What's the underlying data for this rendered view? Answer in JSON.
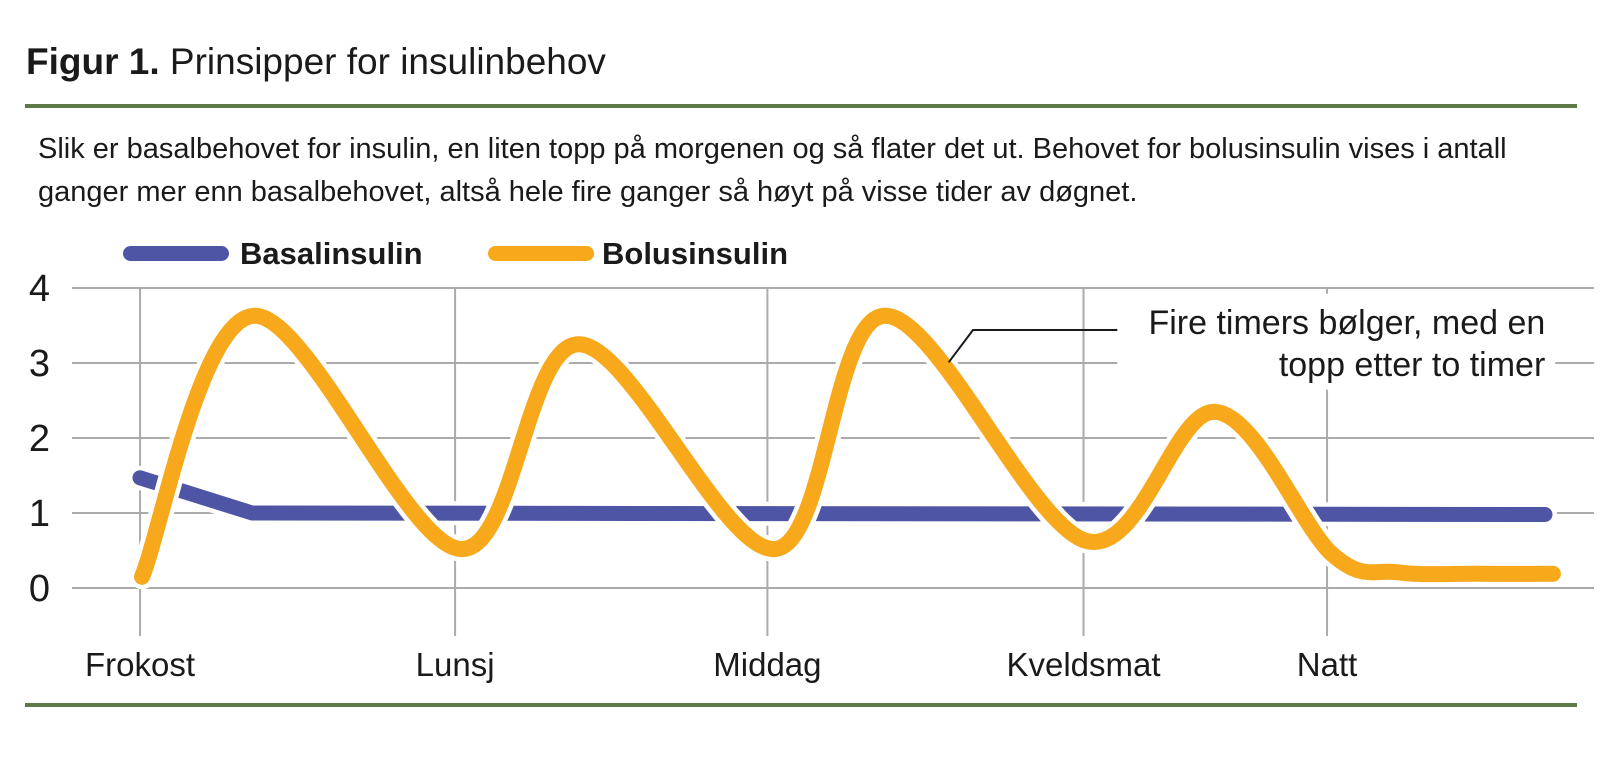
{
  "figure": {
    "label": "Figur 1.",
    "title": "Prinsipper for insulinbehov",
    "description_lines": [
      "Slik er basalbehovet for insulin, en liten topp på morgenen og så flater det ut. Behovet for bolusinsulin vises i antall",
      "ganger mer enn basalbehovet, altså hele fire ganger så høyt på visse tider av døgnet."
    ]
  },
  "legend": {
    "items": [
      {
        "label": "Basalinsulin",
        "color": "#4d55a4"
      },
      {
        "label": "Bolusinsulin",
        "color": "#f7a81b"
      }
    ]
  },
  "chart_data": {
    "type": "line",
    "title": "Prinsipper for insulinbehov",
    "xlabel": "",
    "ylabel": "",
    "x_axis": {
      "labels": [
        "Frokost",
        "Lunsj",
        "Middag",
        "Kveldsmat",
        "Natt"
      ],
      "label_positions": [
        0.0447,
        0.2517,
        0.4569,
        0.6646,
        0.8246
      ]
    },
    "y_axis": {
      "ticks": [
        0,
        1,
        2,
        3,
        4
      ],
      "range": [
        0,
        4
      ]
    },
    "grid": true,
    "legend_position": "top-left",
    "series": [
      {
        "name": "Basalinsulin",
        "color": "#4d55a4",
        "style": "straight",
        "width": 15,
        "points": [
          [
            0.0447,
            1.47
          ],
          [
            0.1183,
            1.0
          ],
          [
            0.9678,
            0.98
          ]
        ]
      },
      {
        "name": "Bolusinsulin",
        "color": "#f7a81b",
        "style": "smooth",
        "width": 16,
        "points": [
          [
            0.046,
            0.15
          ],
          [
            0.119,
            3.63
          ],
          [
            0.255,
            0.52
          ],
          [
            0.333,
            3.25
          ],
          [
            0.462,
            0.52
          ],
          [
            0.534,
            3.63
          ],
          [
            0.666,
            0.63
          ],
          [
            0.751,
            2.35
          ],
          [
            0.828,
            0.45
          ],
          [
            0.871,
            0.21
          ],
          [
            0.922,
            0.19
          ],
          [
            0.973,
            0.19
          ]
        ]
      }
    ],
    "annotation": {
      "lines": [
        "Fire timers bølger, med en",
        "topp etter to timer"
      ],
      "align": "right",
      "x": 0.968,
      "line_values": [
        3.55,
        2.99
      ],
      "callout_points": [
        [
          0.576,
          3.01
        ],
        [
          0.592,
          3.44
        ],
        [
          0.705,
          3.44
        ]
      ]
    },
    "colors": {
      "grid": "#ababab",
      "text": "#1a1a1a",
      "casing": "#ffffff"
    }
  }
}
